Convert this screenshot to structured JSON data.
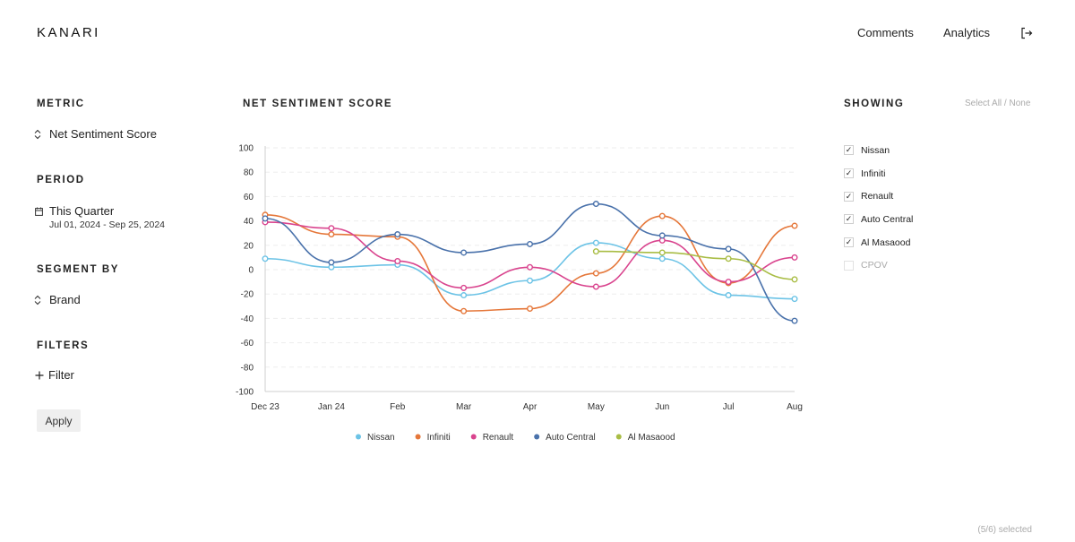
{
  "header": {
    "logo": "KANARI",
    "nav": [
      {
        "label": "Comments"
      },
      {
        "label": "Analytics"
      }
    ],
    "logout_icon": "logout-icon"
  },
  "sidebar": {
    "metric": {
      "title": "METRIC",
      "value": "Net Sentiment Score",
      "icon": "sort-icon"
    },
    "period": {
      "title": "PERIOD",
      "value": "This Quarter",
      "range": "Jul 01, 2024 - Sep 25, 2024",
      "icon": "calendar-icon"
    },
    "segment": {
      "title": "SEGMENT BY",
      "value": "Brand",
      "icon": "sort-icon"
    },
    "filters": {
      "title": "FILTERS",
      "add_label": "Filter",
      "icon": "plus-icon"
    },
    "apply_label": "Apply"
  },
  "chart_title": "NET SENTIMENT SCORE",
  "chart_data": {
    "type": "line",
    "title": "NET SENTIMENT SCORE",
    "x": [
      "Dec 23",
      "Jan 24",
      "Feb",
      "Mar",
      "Apr",
      "May",
      "Jun",
      "Jul",
      "Aug"
    ],
    "ylim": [
      -100,
      100
    ],
    "yticks": [
      "100",
      "80",
      "60",
      "40",
      "20",
      "0",
      "-20",
      "-40",
      "-60",
      "-80",
      "-100"
    ],
    "grid": true,
    "legend": "bottom",
    "series": [
      {
        "name": "Nissan",
        "color": "#6cc3e6",
        "values": [
          9,
          2,
          4,
          -21,
          -9,
          22,
          9,
          -21,
          -24
        ]
      },
      {
        "name": "Infiniti",
        "color": "#e5773a",
        "values": [
          45,
          29,
          27,
          -34,
          -32,
          -3,
          44,
          -11,
          36
        ]
      },
      {
        "name": "Renault",
        "color": "#d9448e",
        "values": [
          39,
          34,
          7,
          -15,
          2,
          -14,
          24,
          -10,
          10
        ]
      },
      {
        "name": "Auto Central",
        "color": "#4a72ab",
        "values": [
          42,
          6,
          29,
          14,
          21,
          54,
          28,
          17,
          -42
        ]
      },
      {
        "name": "Al Masaood",
        "color": "#a9bd45",
        "values": [
          null,
          null,
          null,
          null,
          null,
          15,
          14,
          9,
          -8
        ]
      }
    ]
  },
  "showing": {
    "title": "SHOWING",
    "select_all": "Select All",
    "separator": " / ",
    "select_none": "None",
    "brands": [
      {
        "label": "Nissan",
        "checked": true
      },
      {
        "label": "Infiniti",
        "checked": true
      },
      {
        "label": "Renault",
        "checked": true
      },
      {
        "label": "Auto Central",
        "checked": true
      },
      {
        "label": "Al Masaood",
        "checked": true
      },
      {
        "label": "CPOV",
        "checked": false
      }
    ],
    "selected_count": "(5/6) selected"
  }
}
